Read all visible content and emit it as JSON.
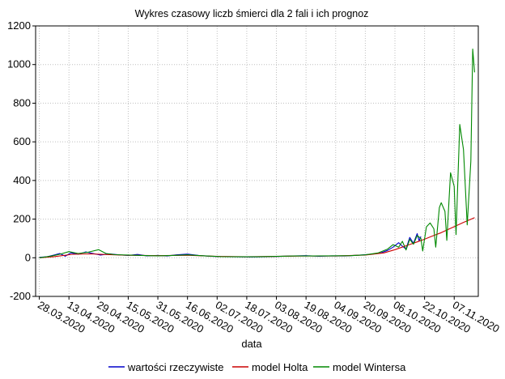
{
  "chart_data": {
    "type": "line",
    "title": "Wykres czasowy liczb śmierci dla 2 fali i ich prognoz",
    "xlabel": "data",
    "ylabel": "",
    "ylim": [
      -200,
      1200
    ],
    "yticks": [
      "-200",
      "0",
      "200",
      "400",
      "600",
      "800",
      "1000",
      "1200"
    ],
    "x_range": [
      "2020-03-26",
      "2020-11-20"
    ],
    "xticks": [
      "28.03.2020",
      "13.04.2020",
      "29.04.2020",
      "15.05.2020",
      "31.05.2020",
      "16.06.2020",
      "02.07.2020",
      "18.07.2020",
      "03.08.2020",
      "19.08.2020",
      "04.09.2020",
      "20.09.2020",
      "06.10.2020",
      "22.10.2020",
      "07.11.2020"
    ],
    "grid": true,
    "legend_position": "bottom",
    "series": [
      {
        "name": "wartości rzeczywiste",
        "color": "#0000cc",
        "points": [
          [
            "2020-03-28",
            2
          ],
          [
            "2020-04-01",
            5
          ],
          [
            "2020-04-05",
            14
          ],
          [
            "2020-04-08",
            22
          ],
          [
            "2020-04-11",
            8
          ],
          [
            "2020-04-14",
            25
          ],
          [
            "2020-04-18",
            18
          ],
          [
            "2020-04-22",
            30
          ],
          [
            "2020-04-26",
            22
          ],
          [
            "2020-04-30",
            14
          ],
          [
            "2020-05-05",
            20
          ],
          [
            "2020-05-10",
            15
          ],
          [
            "2020-05-15",
            12
          ],
          [
            "2020-05-20",
            17
          ],
          [
            "2020-05-25",
            10
          ],
          [
            "2020-05-31",
            12
          ],
          [
            "2020-06-05",
            9
          ],
          [
            "2020-06-10",
            15
          ],
          [
            "2020-06-16",
            19
          ],
          [
            "2020-06-22",
            12
          ],
          [
            "2020-06-28",
            8
          ],
          [
            "2020-07-05",
            6
          ],
          [
            "2020-07-12",
            5
          ],
          [
            "2020-07-20",
            4
          ],
          [
            "2020-07-28",
            5
          ],
          [
            "2020-08-05",
            7
          ],
          [
            "2020-08-12",
            9
          ],
          [
            "2020-08-19",
            11
          ],
          [
            "2020-08-26",
            8
          ],
          [
            "2020-09-02",
            10
          ],
          [
            "2020-09-09",
            9
          ],
          [
            "2020-09-16",
            13
          ],
          [
            "2020-09-22",
            17
          ],
          [
            "2020-09-28",
            24
          ],
          [
            "2020-10-02",
            38
          ],
          [
            "2020-10-05",
            55
          ],
          [
            "2020-10-08",
            78
          ],
          [
            "2020-10-10",
            60
          ],
          [
            "2020-10-12",
            45
          ],
          [
            "2020-10-14",
            105
          ],
          [
            "2020-10-16",
            75
          ],
          [
            "2020-10-18",
            125
          ],
          [
            "2020-10-19",
            88
          ],
          [
            "2020-10-20",
            110
          ]
        ]
      },
      {
        "name": "model Holta",
        "color": "#cc0000",
        "points": [
          [
            "2020-03-28",
            0
          ],
          [
            "2020-04-05",
            6
          ],
          [
            "2020-04-15",
            18
          ],
          [
            "2020-04-25",
            20
          ],
          [
            "2020-05-05",
            16
          ],
          [
            "2020-05-15",
            13
          ],
          [
            "2020-05-31",
            11
          ],
          [
            "2020-06-16",
            13
          ],
          [
            "2020-07-02",
            7
          ],
          [
            "2020-07-18",
            5
          ],
          [
            "2020-08-03",
            7
          ],
          [
            "2020-08-19",
            9
          ],
          [
            "2020-09-04",
            9
          ],
          [
            "2020-09-20",
            14
          ],
          [
            "2020-09-30",
            25
          ],
          [
            "2020-10-06",
            42
          ],
          [
            "2020-10-12",
            62
          ],
          [
            "2020-10-18",
            82
          ],
          [
            "2020-10-22",
            96
          ],
          [
            "2020-10-26",
            112
          ],
          [
            "2020-10-31",
            130
          ],
          [
            "2020-11-04",
            148
          ],
          [
            "2020-11-08",
            165
          ],
          [
            "2020-11-12",
            183
          ],
          [
            "2020-11-16",
            199
          ],
          [
            "2020-11-18",
            208
          ]
        ]
      },
      {
        "name": "model Wintersa",
        "color": "#008800",
        "points": [
          [
            "2020-03-28",
            0
          ],
          [
            "2020-04-03",
            8
          ],
          [
            "2020-04-08",
            18
          ],
          [
            "2020-04-13",
            32
          ],
          [
            "2020-04-18",
            22
          ],
          [
            "2020-04-23",
            28
          ],
          [
            "2020-04-29",
            42
          ],
          [
            "2020-05-03",
            22
          ],
          [
            "2020-05-08",
            16
          ],
          [
            "2020-05-15",
            14
          ],
          [
            "2020-05-22",
            12
          ],
          [
            "2020-05-31",
            10
          ],
          [
            "2020-06-08",
            12
          ],
          [
            "2020-06-16",
            15
          ],
          [
            "2020-06-25",
            10
          ],
          [
            "2020-07-04",
            6
          ],
          [
            "2020-07-14",
            5
          ],
          [
            "2020-07-24",
            5
          ],
          [
            "2020-08-03",
            7
          ],
          [
            "2020-08-13",
            9
          ],
          [
            "2020-08-23",
            9
          ],
          [
            "2020-09-02",
            10
          ],
          [
            "2020-09-12",
            11
          ],
          [
            "2020-09-20",
            15
          ],
          [
            "2020-09-27",
            25
          ],
          [
            "2020-10-02",
            45
          ],
          [
            "2020-10-05",
            68
          ],
          [
            "2020-10-08",
            55
          ],
          [
            "2020-10-10",
            85
          ],
          [
            "2020-10-12",
            40
          ],
          [
            "2020-10-14",
            95
          ],
          [
            "2020-10-16",
            70
          ],
          [
            "2020-10-18",
            115
          ],
          [
            "2020-10-20",
            100
          ],
          [
            "2020-10-21",
            35
          ],
          [
            "2020-10-23",
            160
          ],
          [
            "2020-10-25",
            180
          ],
          [
            "2020-10-27",
            150
          ],
          [
            "2020-10-28",
            55
          ],
          [
            "2020-10-30",
            260
          ],
          [
            "2020-10-31",
            285
          ],
          [
            "2020-11-02",
            240
          ],
          [
            "2020-11-03",
            90
          ],
          [
            "2020-11-05",
            440
          ],
          [
            "2020-11-07",
            370
          ],
          [
            "2020-11-08",
            120
          ],
          [
            "2020-11-10",
            690
          ],
          [
            "2020-11-12",
            560
          ],
          [
            "2020-11-14",
            170
          ],
          [
            "2020-11-16",
            500
          ],
          [
            "2020-11-17",
            1080
          ],
          [
            "2020-11-18",
            960
          ]
        ]
      }
    ]
  }
}
